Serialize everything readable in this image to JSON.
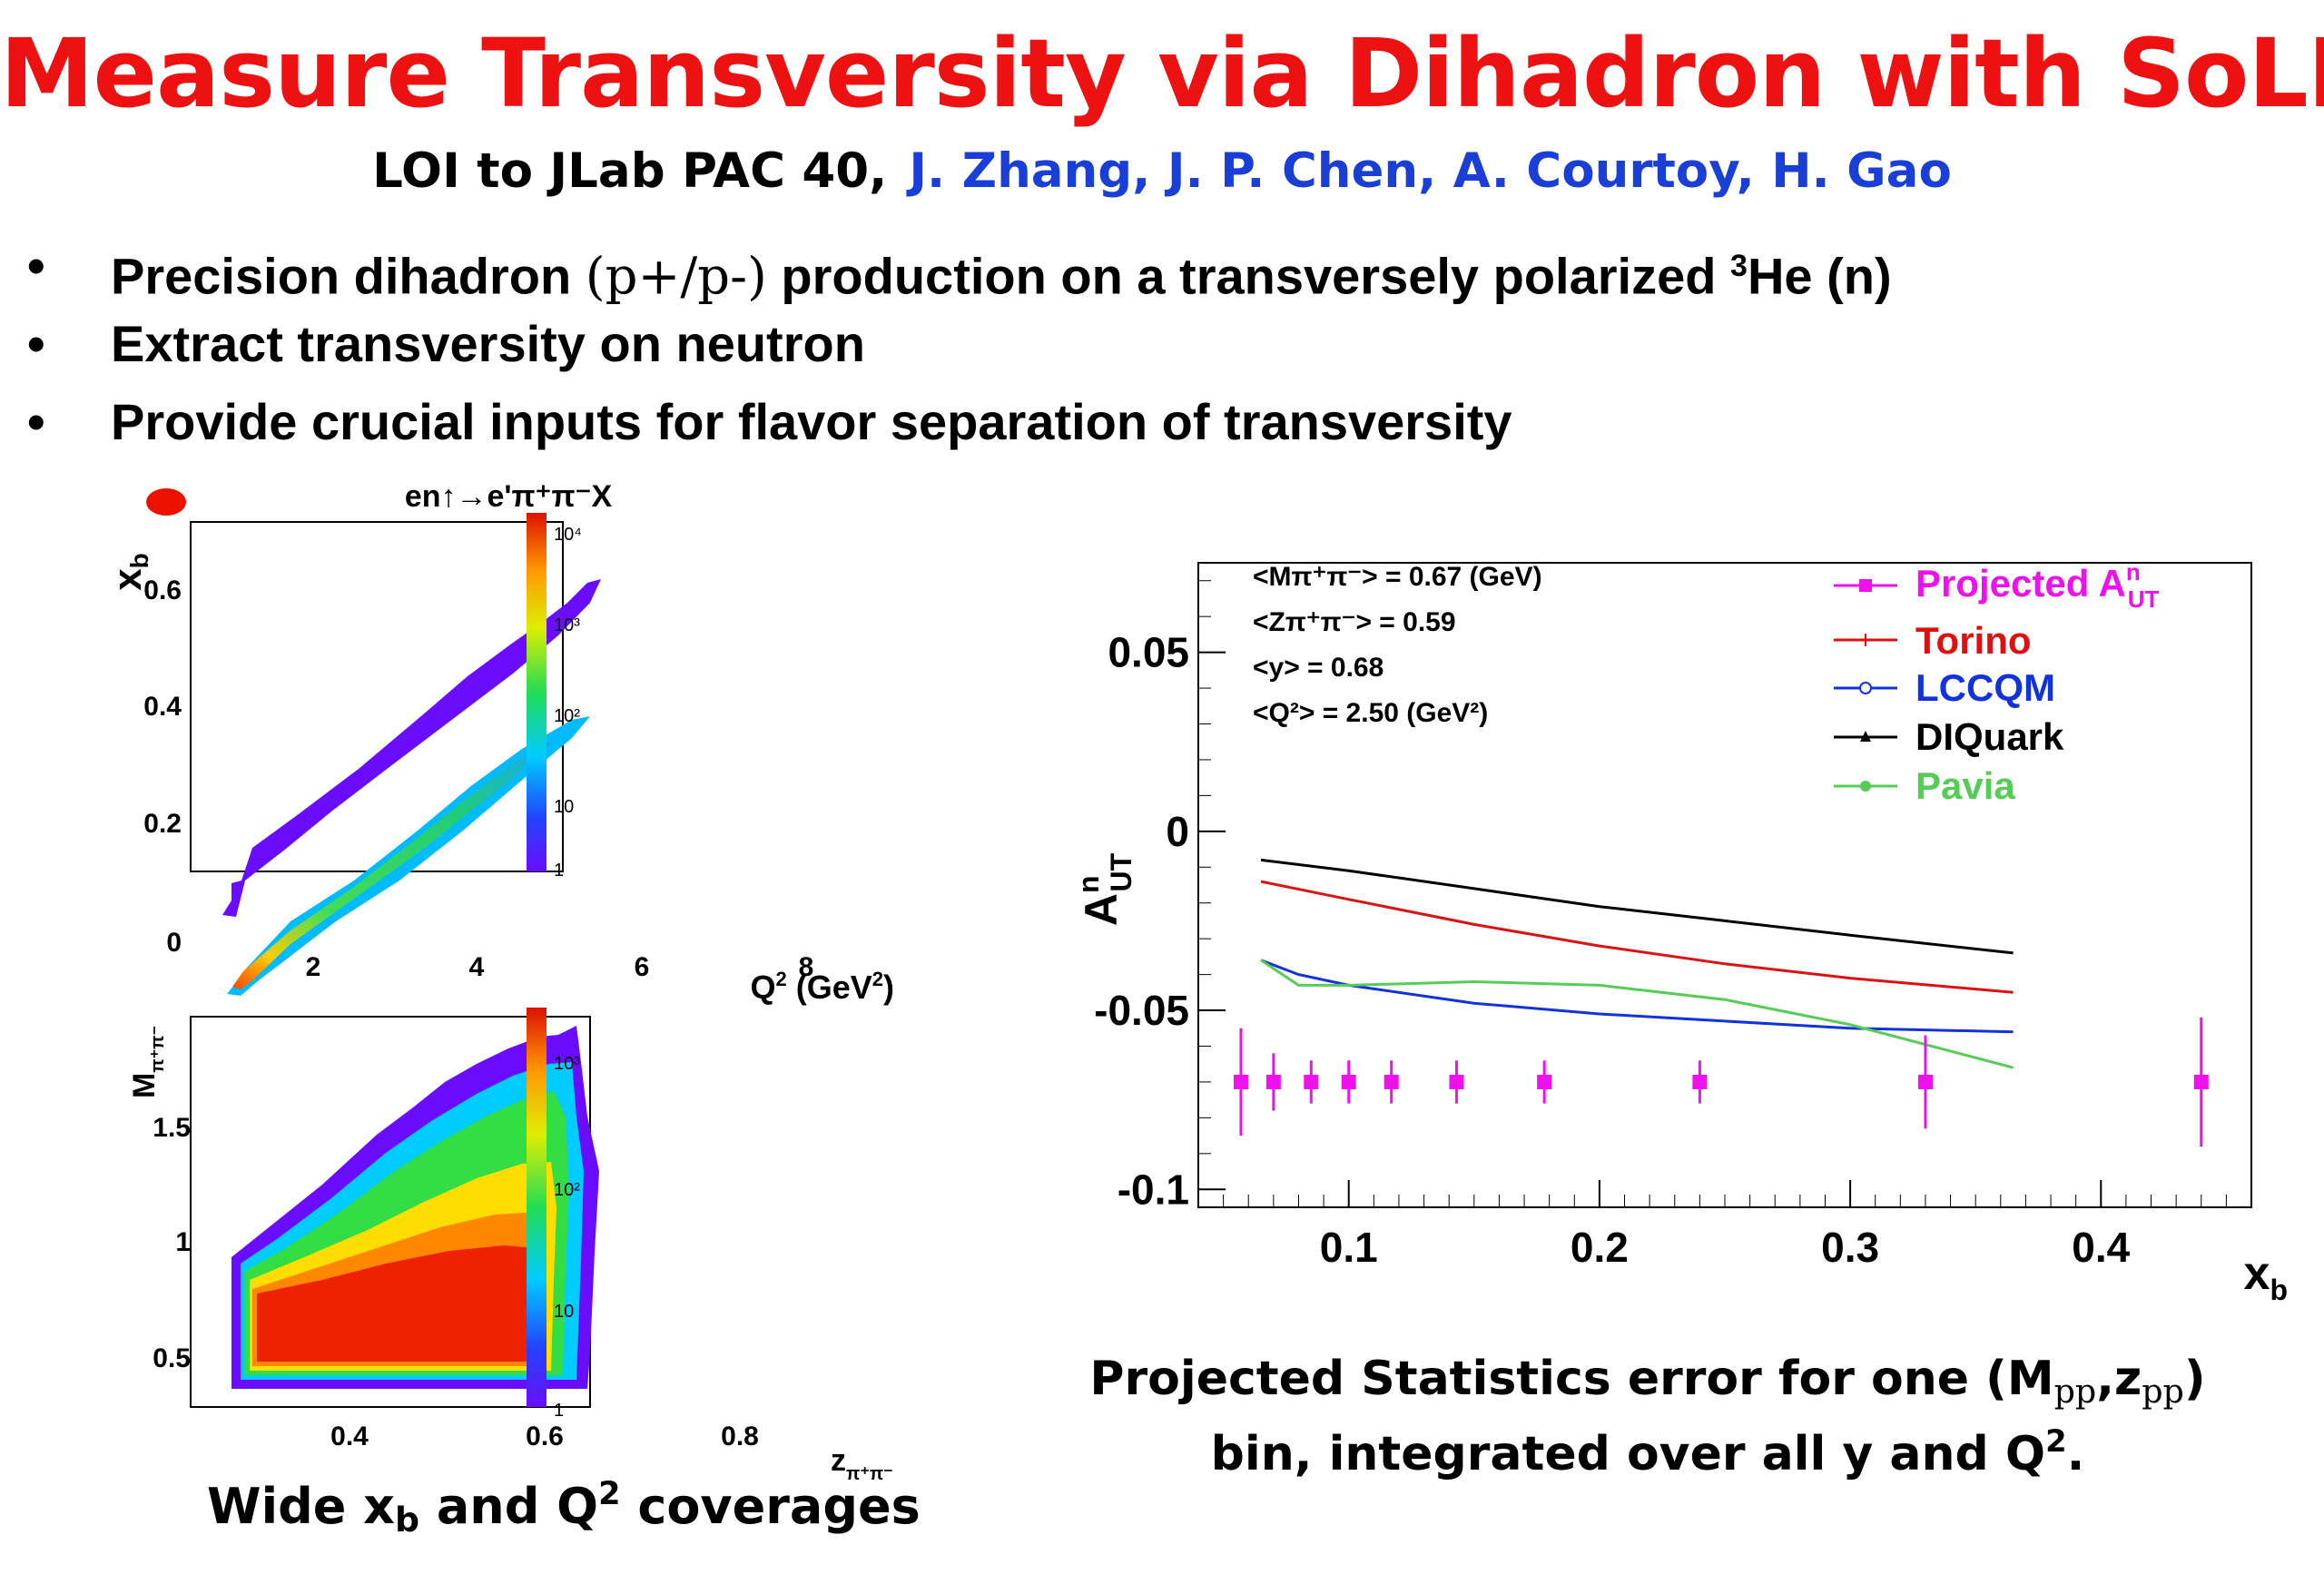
{
  "header": {
    "title": "Measure Transversity via Dihadron with SoLID",
    "subtitle_prefix": "LOI to JLab PAC 40,",
    "subtitle_authors": "J. Zhang, J. P. Chen, A. Courtoy, H. Gao"
  },
  "bullets": {
    "b1_pre": "Precision dihadron ",
    "b1_serif": "(p+/p-)",
    "b1_mid": " production on a transversely polarized ",
    "b1_sup": "3",
    "b1_post": "He (n)",
    "b2": "Extract transversity on neutron",
    "b3": "Provide crucial inputs for flavor separation of transversity",
    "marker": "•"
  },
  "colors": {
    "title": "#ee1111",
    "authors": "#1a3fd6",
    "projected": "#ee11ee",
    "torino": "#dd1111",
    "lccqm": "#1133dd",
    "diquark": "#000000",
    "pavia": "#55cc55"
  },
  "chart_data": [
    {
      "type": "heatmap",
      "title": "en↑→e'π⁺π⁻X",
      "xlabel": "Q² (GeV²)",
      "ylabel": "x_b",
      "xlim": [
        0.3,
        9.2
      ],
      "ylim": [
        0,
        0.67
      ],
      "xticks": [
        "2",
        "4",
        "6",
        "8"
      ],
      "yticks": [
        "0",
        "0.2",
        "0.4",
        "0.6"
      ],
      "colorbar_ticks": [
        "1",
        "10",
        "10²",
        "10³",
        "10⁴"
      ],
      "z_scale": "log"
    },
    {
      "type": "heatmap",
      "xlabel": "z_π⁺π⁻",
      "ylabel": "M_π⁺π⁻",
      "xlim": [
        0.15,
        0.85
      ],
      "ylim": [
        0.25,
        1.95
      ],
      "xticks": [
        "0.4",
        "0.6",
        "0.8"
      ],
      "yticks": [
        "0.5",
        "1",
        "1.5"
      ],
      "colorbar_ticks": [
        "1",
        "10",
        "10²",
        "10³"
      ],
      "z_scale": "log"
    },
    {
      "type": "line",
      "xlabel": "x_b",
      "ylabel": "A^n_UT",
      "xlim": [
        0.04,
        0.46
      ],
      "ylim": [
        -0.105,
        0.075
      ],
      "xticks": [
        "0.1",
        "0.2",
        "0.3",
        "0.4"
      ],
      "yticks": [
        "0.05",
        "0",
        "-0.05",
        "-0.1"
      ],
      "kinematics": [
        "<Mπ⁺π⁻> = 0.67 (GeV)",
        "<Zπ⁺π⁻> = 0.59",
        "<y> = 0.68",
        "<Q²> = 2.50 (GeV²)"
      ],
      "legend": [
        "Projected A^n_UT",
        "Torino",
        "LCCQM",
        "DIQuark",
        "Pavia"
      ],
      "legend_position": "top-right",
      "projected": {
        "x": [
          0.057,
          0.07,
          0.085,
          0.1,
          0.117,
          0.143,
          0.178,
          0.24,
          0.33,
          0.44
        ],
        "y": [
          -0.07,
          -0.07,
          -0.07,
          -0.07,
          -0.07,
          -0.07,
          -0.07,
          -0.07,
          -0.07,
          -0.07
        ],
        "err": [
          0.015,
          0.008,
          0.006,
          0.006,
          0.006,
          0.006,
          0.006,
          0.006,
          0.013,
          0.018
        ]
      },
      "series": [
        {
          "name": "DIQuark",
          "x": [
            0.065,
            0.1,
            0.15,
            0.2,
            0.25,
            0.3,
            0.365
          ],
          "y": [
            -0.008,
            -0.011,
            -0.016,
            -0.021,
            -0.025,
            -0.029,
            -0.034
          ]
        },
        {
          "name": "Torino",
          "x": [
            0.065,
            0.1,
            0.15,
            0.2,
            0.25,
            0.3,
            0.365
          ],
          "y": [
            -0.014,
            -0.019,
            -0.026,
            -0.032,
            -0.037,
            -0.041,
            -0.045
          ]
        },
        {
          "name": "LCCQM",
          "x": [
            0.065,
            0.08,
            0.1,
            0.15,
            0.2,
            0.25,
            0.3,
            0.365
          ],
          "y": [
            -0.036,
            -0.04,
            -0.043,
            -0.048,
            -0.051,
            -0.053,
            -0.055,
            -0.056
          ]
        },
        {
          "name": "Pavia",
          "x": [
            0.065,
            0.08,
            0.1,
            0.15,
            0.2,
            0.25,
            0.3,
            0.365
          ],
          "y": [
            -0.036,
            -0.043,
            -0.043,
            -0.042,
            -0.043,
            -0.047,
            -0.054,
            -0.066
          ]
        }
      ]
    }
  ],
  "captions": {
    "left_pre": "Wide x",
    "left_sub": "b",
    "left_mid": " and Q",
    "left_sup": "2",
    "left_post": " coverages",
    "right_l1_pre": "Projected Statistics error for one (M",
    "right_l1_sub1": "pp",
    "right_l1_mid": ",z",
    "right_l1_sub2": "pp",
    "right_l1_post": ")",
    "right_l2_pre": "bin, integrated over all y and Q",
    "right_l2_sup": "2",
    "right_l2_post": "."
  }
}
